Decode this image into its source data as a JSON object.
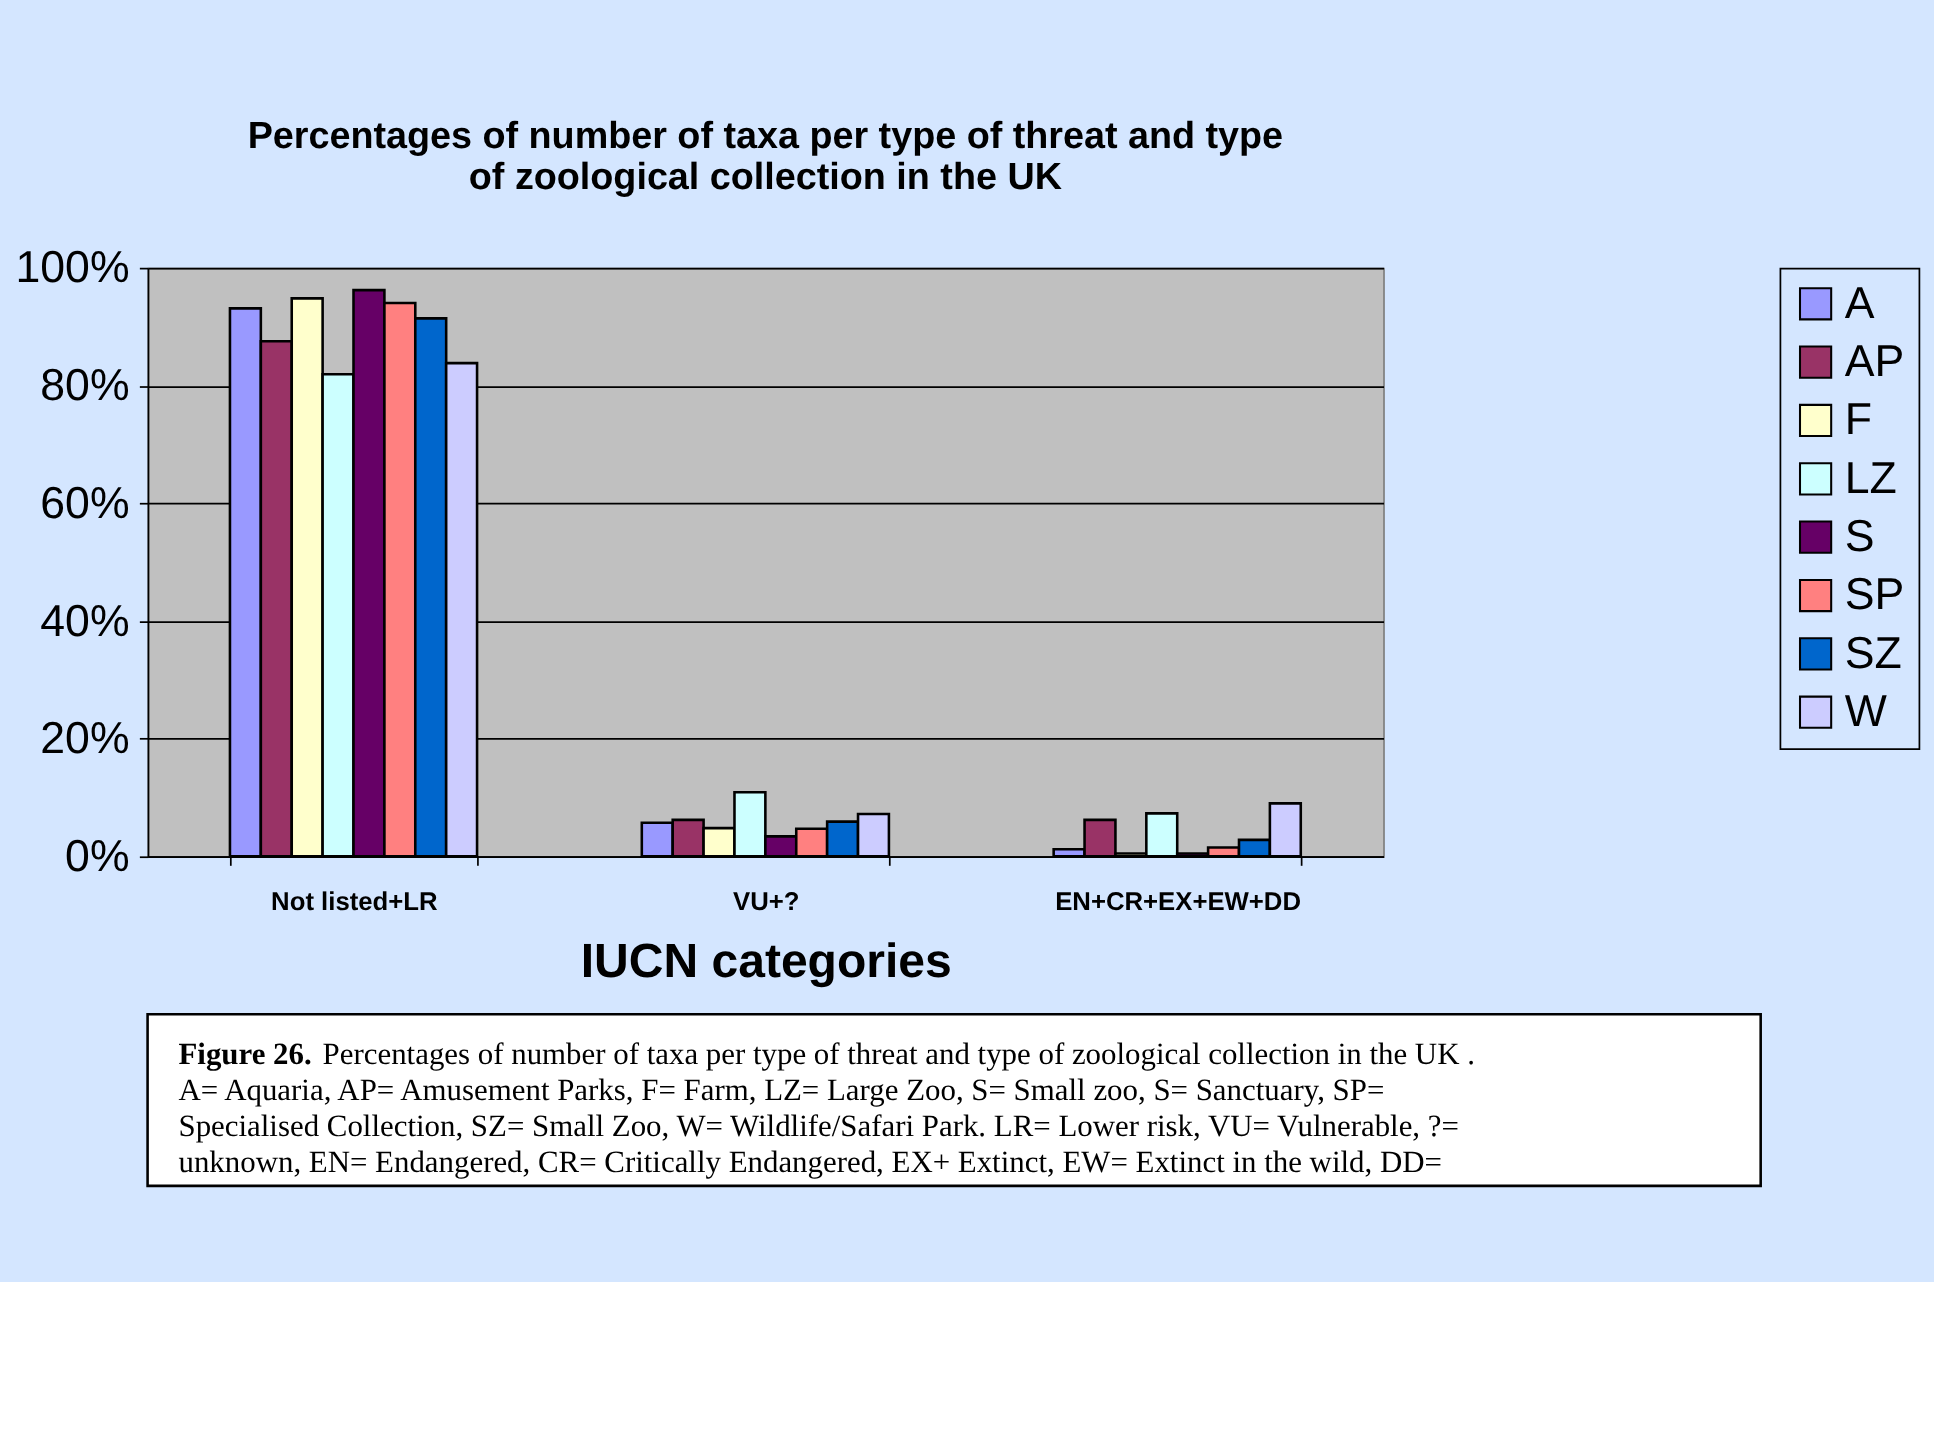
{
  "chart_data": {
    "type": "bar",
    "title": "Percentages of number of taxa per type of threat and type of zoological collection in the UK",
    "xlabel": "IUCN categories",
    "categories": [
      "Not listed+LR",
      "VU+?",
      "EN+CR+EX+EW+DD"
    ],
    "series": [
      {
        "name": "A",
        "color": "#9999ff",
        "values": [
          93.1,
          5.7,
          1.2
        ]
      },
      {
        "name": "AP",
        "color": "#993366",
        "values": [
          87.5,
          6.2,
          6.2
        ]
      },
      {
        "name": "F",
        "color": "#ffffcc",
        "values": [
          94.8,
          4.8,
          0.5
        ]
      },
      {
        "name": "LZ",
        "color": "#ccffff",
        "values": [
          81.9,
          10.9,
          7.3
        ]
      },
      {
        "name": "S",
        "color": "#660066",
        "values": [
          96.2,
          3.4,
          0.5
        ]
      },
      {
        "name": "SP",
        "color": "#ff8080",
        "values": [
          94.0,
          4.7,
          1.5
        ]
      },
      {
        "name": "SZ",
        "color": "#0066cc",
        "values": [
          91.4,
          5.9,
          2.8
        ]
      },
      {
        "name": "W",
        "color": "#ccccff",
        "values": [
          83.8,
          7.2,
          9.0
        ]
      }
    ],
    "ylim": [
      0,
      100
    ],
    "yticks": [
      {
        "value": 0,
        "label": "0%"
      },
      {
        "value": 20,
        "label": "20%"
      },
      {
        "value": 40,
        "label": "40%"
      },
      {
        "value": 60,
        "label": "60%"
      },
      {
        "value": 80,
        "label": "80%"
      },
      {
        "value": 100,
        "label": "100%"
      }
    ],
    "grid": "y",
    "legend": "right",
    "annotations": [
      "Figure 26.",
      "Percentages of number of taxa per type of threat and type of zoological collection in the UK .",
      "A= Aquaria, AP= Amusement Parks, F= Farm, LZ= Large Zoo, S= Small zoo, S= Sanctuary, SP=",
      "Specialised Collection, SZ= Small Zoo, W= Wildlife/Safari Park. LR= Lower risk, VU= Vulnerable, ?=",
      "unknown, EN= Endangered, CR= Critically Endangered, EX+ Extinct, EW= Extinct in the wild, DD="
    ]
  }
}
